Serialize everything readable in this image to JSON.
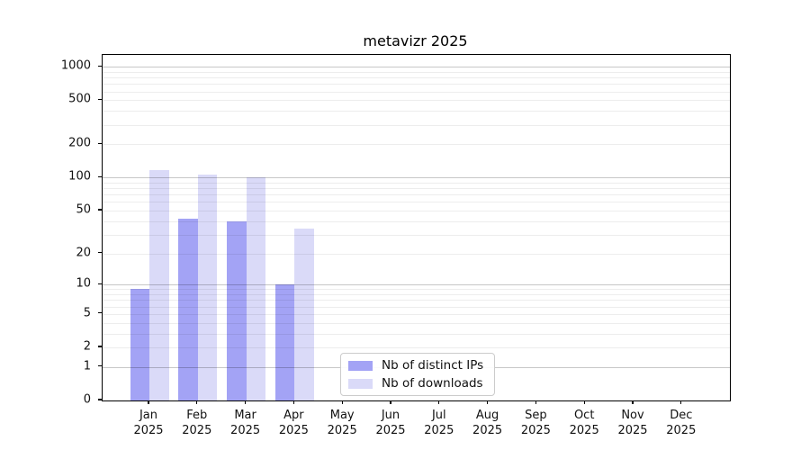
{
  "chart_data": {
    "type": "bar",
    "title": "metavizr 2025",
    "scale": "log1p",
    "grid": true,
    "legend_position": "bottom-center",
    "xlabel": "",
    "ylabel": "",
    "ylim": [
      0,
      1280
    ],
    "y_ticks": [
      0,
      1,
      2,
      5,
      10,
      20,
      50,
      100,
      200,
      500,
      1000
    ],
    "year": "2025",
    "categories": [
      "Jan",
      "Feb",
      "Mar",
      "Apr",
      "May",
      "Jun",
      "Jul",
      "Aug",
      "Sep",
      "Oct",
      "Nov",
      "Dec"
    ],
    "series": [
      {
        "name": "Nb of distinct IPs",
        "color": "#a3a3f5",
        "values": [
          9,
          42,
          40,
          10,
          0,
          0,
          0,
          0,
          0,
          0,
          0,
          0
        ]
      },
      {
        "name": "Nb of downloads",
        "color": "#dadaf8",
        "values": [
          116,
          107,
          100,
          34,
          0,
          0,
          0,
          0,
          0,
          0,
          0,
          0
        ]
      }
    ]
  }
}
